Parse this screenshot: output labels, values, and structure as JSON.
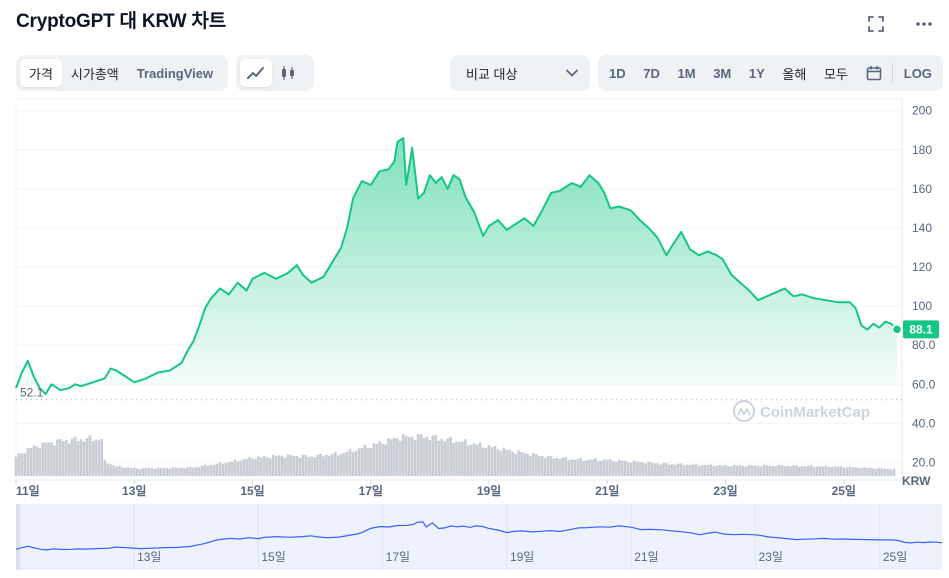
{
  "header": {
    "title": "CryptoGPT 대 KRW 차트"
  },
  "tabs": {
    "price": "가격",
    "market_cap": "시가총액",
    "tradingview": "TradingView"
  },
  "compare": {
    "label": "비교 대상"
  },
  "ranges": [
    "1D",
    "7D",
    "1M",
    "3M",
    "1Y",
    "올해",
    "모두"
  ],
  "log_label": "LOG",
  "icons": {
    "expand": "expand-icon",
    "more": "more-icon",
    "line": "line-chart-icon",
    "candle": "candlestick-icon",
    "calendar": "calendar-icon",
    "chevron": "chevron-down-icon"
  },
  "colors": {
    "line": "#16c784",
    "volume": "#c8ccd3",
    "nav": "#3861fb",
    "price_badge": "#16c784"
  },
  "watermark": "CoinMarketCap",
  "chart_data": {
    "type": "area",
    "currency": "KRW",
    "current_price_label": "88.1",
    "low_label": "52.1",
    "yticks": [
      "200",
      "180",
      "160",
      "140",
      "120",
      "100",
      "80.0",
      "60.0",
      "40.0",
      "20.0"
    ],
    "ylim": [
      11,
      206
    ],
    "xlabels": [
      "11일",
      "13일",
      "15일",
      "17일",
      "19일",
      "21일",
      "23일",
      "25일"
    ],
    "navigator_labels": [
      "13일",
      "15일",
      "17일",
      "19일",
      "21일",
      "23일",
      "25일"
    ],
    "x_range_days": [
      11,
      25.9
    ],
    "price_series": [
      [
        11.0,
        58
      ],
      [
        11.1,
        66
      ],
      [
        11.2,
        72
      ],
      [
        11.3,
        64
      ],
      [
        11.4,
        58
      ],
      [
        11.5,
        55
      ],
      [
        11.6,
        60
      ],
      [
        11.75,
        57
      ],
      [
        11.9,
        58
      ],
      [
        12.0,
        60
      ],
      [
        12.1,
        59
      ],
      [
        12.3,
        61
      ],
      [
        12.5,
        63
      ],
      [
        12.6,
        68
      ],
      [
        12.7,
        67
      ],
      [
        12.85,
        64
      ],
      [
        13.0,
        61
      ],
      [
        13.2,
        63
      ],
      [
        13.4,
        66
      ],
      [
        13.6,
        67
      ],
      [
        13.8,
        71
      ],
      [
        13.9,
        77
      ],
      [
        14.0,
        82
      ],
      [
        14.1,
        90
      ],
      [
        14.2,
        99
      ],
      [
        14.3,
        104
      ],
      [
        14.45,
        109
      ],
      [
        14.6,
        106
      ],
      [
        14.75,
        112
      ],
      [
        14.9,
        108
      ],
      [
        15.0,
        114
      ],
      [
        15.2,
        117
      ],
      [
        15.4,
        114
      ],
      [
        15.6,
        117
      ],
      [
        15.75,
        121
      ],
      [
        15.85,
        116
      ],
      [
        16.0,
        112
      ],
      [
        16.2,
        115
      ],
      [
        16.4,
        125
      ],
      [
        16.5,
        130
      ],
      [
        16.6,
        140
      ],
      [
        16.7,
        155
      ],
      [
        16.85,
        164
      ],
      [
        17.0,
        162
      ],
      [
        17.15,
        169
      ],
      [
        17.3,
        170
      ],
      [
        17.4,
        174
      ],
      [
        17.45,
        184
      ],
      [
        17.55,
        186
      ],
      [
        17.6,
        162
      ],
      [
        17.7,
        181
      ],
      [
        17.8,
        155
      ],
      [
        17.9,
        158
      ],
      [
        18.0,
        167
      ],
      [
        18.1,
        163
      ],
      [
        18.2,
        166
      ],
      [
        18.3,
        160
      ],
      [
        18.4,
        167
      ],
      [
        18.5,
        165
      ],
      [
        18.6,
        156
      ],
      [
        18.75,
        148
      ],
      [
        18.9,
        136
      ],
      [
        19.0,
        141
      ],
      [
        19.15,
        144
      ],
      [
        19.3,
        139
      ],
      [
        19.45,
        142
      ],
      [
        19.6,
        145
      ],
      [
        19.75,
        141
      ],
      [
        19.9,
        149
      ],
      [
        20.05,
        158
      ],
      [
        20.2,
        159
      ],
      [
        20.4,
        163
      ],
      [
        20.55,
        161
      ],
      [
        20.7,
        167
      ],
      [
        20.85,
        163
      ],
      [
        20.95,
        158
      ],
      [
        21.05,
        150
      ],
      [
        21.2,
        151
      ],
      [
        21.4,
        149
      ],
      [
        21.55,
        144
      ],
      [
        21.7,
        140
      ],
      [
        21.85,
        135
      ],
      [
        22.0,
        126
      ],
      [
        22.1,
        131
      ],
      [
        22.25,
        138
      ],
      [
        22.4,
        129
      ],
      [
        22.55,
        126
      ],
      [
        22.7,
        128
      ],
      [
        22.85,
        126
      ],
      [
        22.95,
        124
      ],
      [
        23.1,
        116
      ],
      [
        23.25,
        112
      ],
      [
        23.4,
        108
      ],
      [
        23.55,
        103
      ],
      [
        23.7,
        105
      ],
      [
        23.85,
        107
      ],
      [
        24.0,
        109
      ],
      [
        24.15,
        105
      ],
      [
        24.3,
        106
      ],
      [
        24.5,
        104
      ],
      [
        24.7,
        103
      ],
      [
        24.9,
        102
      ],
      [
        25.1,
        102
      ],
      [
        25.2,
        99
      ],
      [
        25.3,
        90
      ],
      [
        25.4,
        88
      ],
      [
        25.5,
        91
      ],
      [
        25.6,
        89
      ],
      [
        25.7,
        92
      ],
      [
        25.8,
        91
      ],
      [
        25.9,
        88.1
      ]
    ],
    "volume_series": [
      [
        11.0,
        0.45
      ],
      [
        11.2,
        0.62
      ],
      [
        11.4,
        0.72
      ],
      [
        11.6,
        0.78
      ],
      [
        11.8,
        0.82
      ],
      [
        12.0,
        0.84
      ],
      [
        12.25,
        0.86
      ],
      [
        12.45,
        0.85
      ],
      [
        12.5,
        0.34
      ],
      [
        12.7,
        0.22
      ],
      [
        13.0,
        0.18
      ],
      [
        13.5,
        0.18
      ],
      [
        14.0,
        0.2
      ],
      [
        14.5,
        0.3
      ],
      [
        15.0,
        0.42
      ],
      [
        15.5,
        0.47
      ],
      [
        16.0,
        0.46
      ],
      [
        16.5,
        0.52
      ],
      [
        17.0,
        0.7
      ],
      [
        17.5,
        0.9
      ],
      [
        17.9,
        0.92
      ],
      [
        18.5,
        0.8
      ],
      [
        19.0,
        0.68
      ],
      [
        19.5,
        0.55
      ],
      [
        20.0,
        0.44
      ],
      [
        20.5,
        0.38
      ],
      [
        21.0,
        0.37
      ],
      [
        21.5,
        0.33
      ],
      [
        22.0,
        0.28
      ],
      [
        23.0,
        0.24
      ],
      [
        24.0,
        0.24
      ],
      [
        25.0,
        0.21
      ],
      [
        25.9,
        0.16
      ]
    ]
  }
}
